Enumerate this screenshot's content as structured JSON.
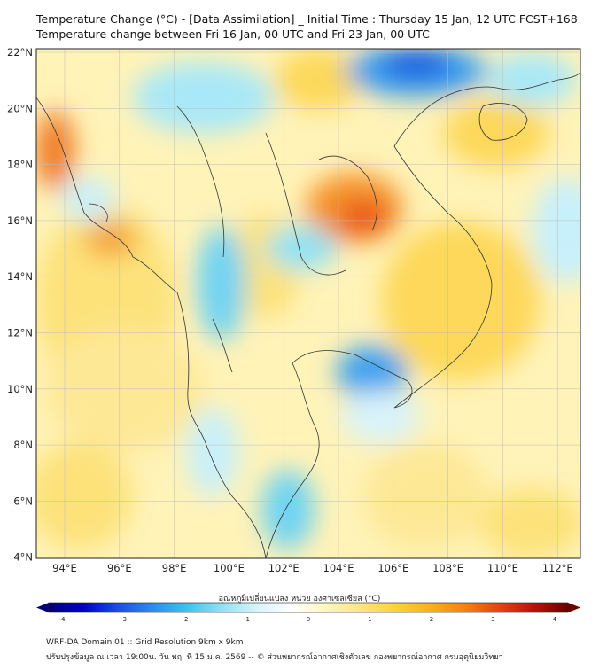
{
  "header": {
    "title_line1": "Temperature Change (°C) - [Data Assimilation] _ Initial Time : Thursday 15 Jan, 12 UTC FCST+168",
    "title_line2": "Temperature change between Fri 16 Jan, 00 UTC and Fri 23 Jan, 00 UTC"
  },
  "map": {
    "lat_labels": [
      "22°N",
      "20°N",
      "18°N",
      "16°N",
      "14°N",
      "12°N",
      "10°N",
      "8°N",
      "6°N",
      "4°N"
    ],
    "lon_labels": [
      "94°E",
      "96°E",
      "98°E",
      "100°E",
      "102°E",
      "104°E",
      "106°E",
      "108°E",
      "110°E",
      "112°E"
    ]
  },
  "colorbar": {
    "title": "อุณหภูมิเปลี่ยนแปลง หน่วย องศาเซลเซียส (°C)",
    "tick_labels": [
      "-4",
      "-3",
      "-2",
      "-1",
      "0",
      "1",
      "2",
      "3",
      "4"
    ],
    "colors": [
      "#00007a",
      "#0000c8",
      "#1a4fe0",
      "#2b8cf0",
      "#3fc3f0",
      "#8fe2f5",
      "#d8f3fa",
      "#ffffff",
      "#fff6c0",
      "#ffe680",
      "#fdd23c",
      "#fbb01e",
      "#f58214",
      "#e04610",
      "#b81408",
      "#6a0000"
    ]
  },
  "footer": {
    "line1": "WRF-DA Domain 01 :: Grid Resolution 9km x 9km",
    "line2": "ปรับปรุงข้อมูล ณ เวลา 19:00น. วัน พฤ. ที่ 15 ม.ค. 2569 -- © ส่วนพยากรณ์อากาศเชิงตัวเลข กองพยากรณ์อากาศ กรมอุตุนิยมวิทยา"
  }
}
